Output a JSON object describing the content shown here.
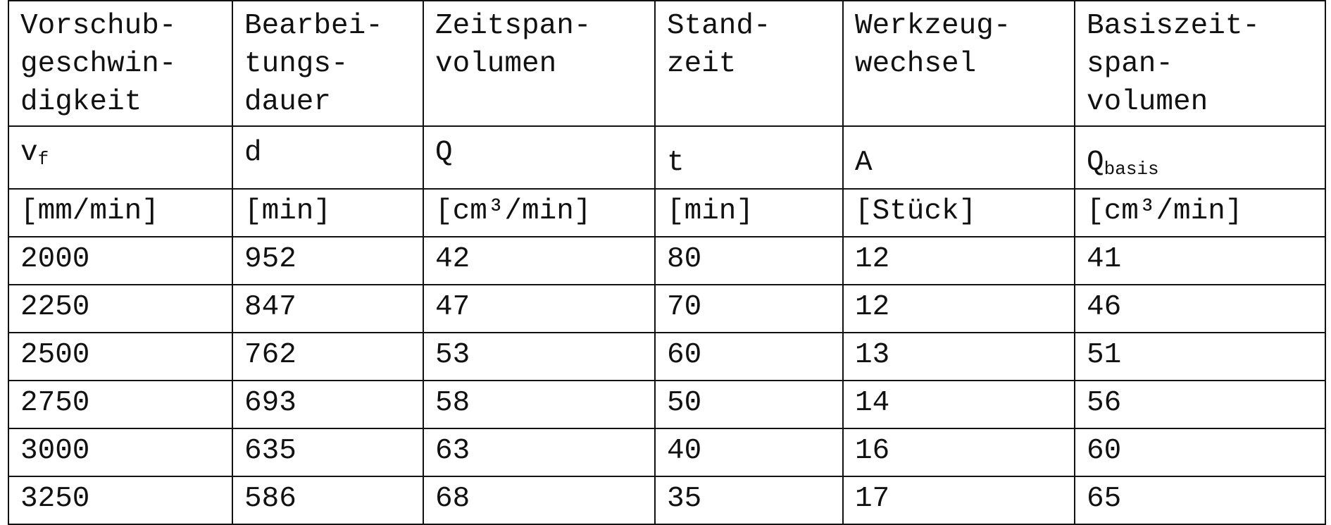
{
  "table": {
    "headers": [
      [
        "Vorschub-",
        "geschwin-",
        "digkeit"
      ],
      [
        "Bearbei-",
        "tungs-",
        "dauer"
      ],
      [
        "Zeitspan-",
        "volumen"
      ],
      [
        "Stand-",
        "zeit"
      ],
      [
        "Werkzeug-",
        "wechsel"
      ],
      [
        "Basiszeit-",
        "span-",
        "volumen"
      ]
    ],
    "symbols": [
      {
        "base": "v",
        "sub": "f"
      },
      {
        "base": "d",
        "sub": ""
      },
      {
        "base": "Q",
        "sub": ""
      },
      {
        "base": "t",
        "sub": ""
      },
      {
        "base": "A",
        "sub": ""
      },
      {
        "base": "Q",
        "sub": "basis"
      }
    ],
    "units": [
      "[mm/min]",
      "[min]",
      "[cm³/min]",
      "[min]",
      "[Stück]",
      "[cm³/min]"
    ],
    "rows": [
      [
        "2000",
        "952",
        "42",
        "80",
        "12",
        "41"
      ],
      [
        "2250",
        "847",
        "47",
        "70",
        "12",
        "46"
      ],
      [
        "2500",
        "762",
        "53",
        "60",
        "13",
        "51"
      ],
      [
        "2750",
        "693",
        "58",
        "50",
        "14",
        "56"
      ],
      [
        "3000",
        "635",
        "63",
        "40",
        "16",
        "60"
      ],
      [
        "3250",
        "586",
        "68",
        "35",
        "17",
        "65"
      ]
    ]
  }
}
